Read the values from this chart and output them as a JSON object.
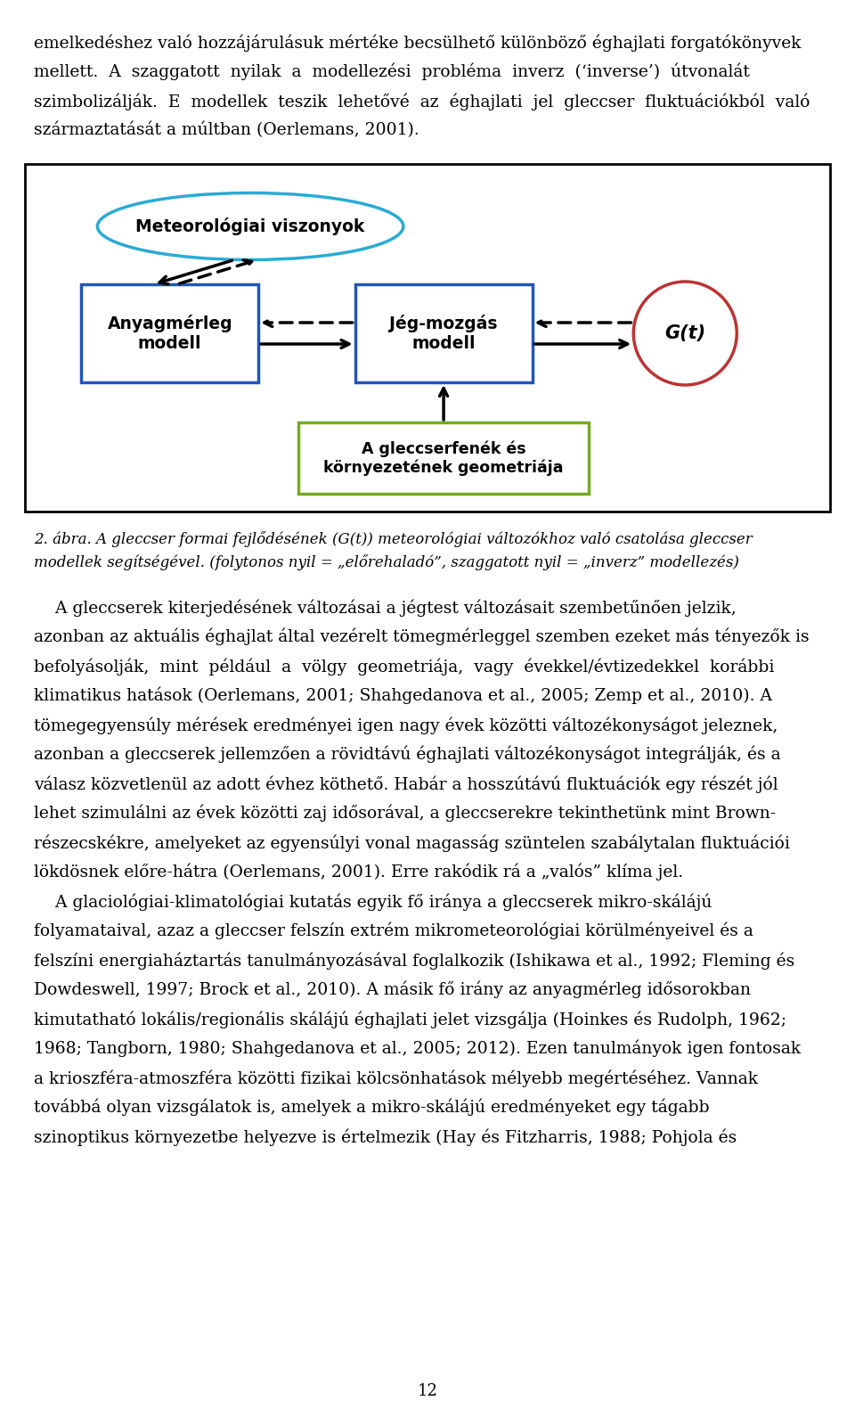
{
  "bg_color": "#ffffff",
  "diagram_border": "#000000",
  "para1": "emelkedéshez való hozzájárulásuk mértéke becsülhető különböző éghajlati forgatókönyvek",
  "para2": "mellett.  A  szaggatott  nyilak  a  modellezési  probléma  inverz  (‘inverse’)  útvonalát",
  "para3": "szimbolizálják.  E  modellek  teszik  lehetővé  az  éghajlati  jel  gleccser  fluktuációkból  való",
  "para4": "származtatását a múltban (Oerlemans, 2001).",
  "meteo_label": "Meteorológiai viszonyok",
  "meteo_color": "#29ABD4",
  "anyag_label": "Anyagmérleg\nmodell",
  "anyag_color": "#2255BB",
  "jeg_label": "Jég-mozgás\nmodell",
  "jeg_color": "#2255BB",
  "gt_label": "G(t)",
  "gt_color": "#BB3333",
  "geo_label": "A gleccserfenék és\nkörnyezetének geometriája",
  "geo_color": "#77AA22",
  "caption1": "2. ábra. A gleccser formai fejlődésének (G(t)) meteorológiai változókhoz való csatolása gleccser",
  "caption2": "modellek segítségével. (folytonos nyil = „előrehaladó”, szaggatott nyil = „inverz” modellezés)",
  "body_lines": [
    "    A gleccserek kiterjedésének változásai a jégtest változásait szembetűnően jelzik,",
    "azonban az aktuális éghajlat által vezérelt tömegmérleggel szemben ezeket más tényezők is",
    "befolyásolják,  mint  például  a  völgy  geometriája,  vagy  évekkel/évtizedekkel  korábbi",
    "klimatikus hatások (Oerlemans, 2001; Shahgedanova et al., 2005; Zemp et al., 2010). A",
    "tömegegyensúly mérések eredményei igen nagy évek közötti változékonyságot jeleznek,",
    "azonban a gleccserek jellemzően a rövidtávú éghajlati változékonyságot integrálják, és a",
    "válasz közvetlenül az adott évhez köthető. Habár a hosszútávú fluktuációk egy részét jól",
    "lehet szimulálni az évek közötti zaj idősorával, a gleccserekre tekinthetünk mint Brown-",
    "részecskékre, amelyeket az egyensúlyi vonal magasság szüntelen szabálytalan fluktuációi",
    "lökdösnek előre-hátra (Oerlemans, 2001). Erre rakódik rá a „valós” klíma jel.",
    "    A glaciológiai-klimatológiai kutatás egyik fő iránya a gleccserek mikro-skálájú",
    "folyamataival, azaz a gleccser felszín extrém mikrometeorológiai körülményeivel és a",
    "felszíni energiaháztartás tanulmányozásával foglalkozik (Ishikawa et al., 1992; Fleming és",
    "Dowdeswell, 1997; Brock et al., 2010). A másik fő irány az anyagmérleg idősorokban",
    "kimutatható lokális/regionális skálájú éghajlati jelet vizsgálja (Hoinkes és Rudolph, 1962;",
    "1968; Tangborn, 1980; Shahgedanova et al., 2005; 2012). Ezen tanulmányok igen fontosak",
    "a krioszféra-atmoszféra közötti fizikai kölcsönhatások mélyebb megértéséhez. Vannak",
    "továbbá olyan vizsgálatok is, amelyek a mikro-skálájú eredményeket egy tágabb",
    "szinoptikus környezetbe helyezve is értelmezik (Hay és Fitzharris, 1988; Pohjola és"
  ],
  "page_num": "12"
}
